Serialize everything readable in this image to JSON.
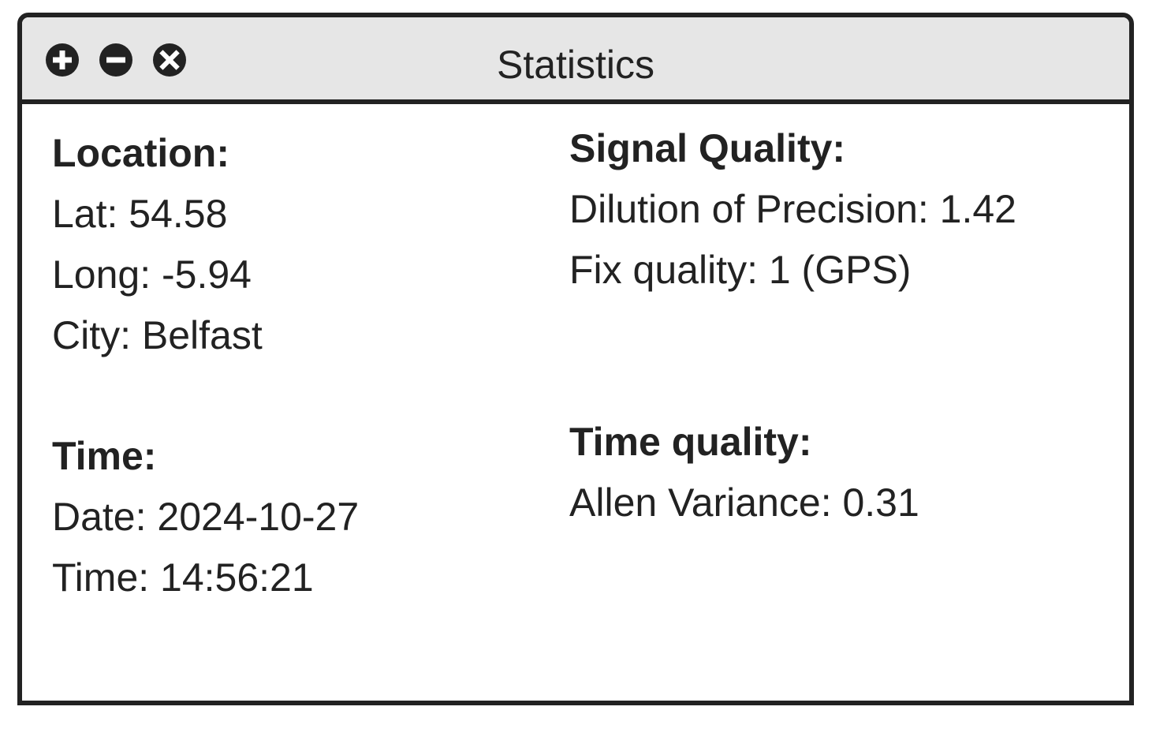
{
  "window": {
    "title": "Statistics",
    "controls": [
      "plus-icon",
      "minus-icon",
      "close-icon"
    ]
  },
  "location": {
    "heading": "Location:",
    "lat": "Lat: 54.58",
    "long": "Long: -5.94",
    "city": "City: Belfast"
  },
  "signal": {
    "heading": "Signal Quality:",
    "dop": "Dilution of Precision: 1.42",
    "fix": "Fix quality: 1 (GPS)"
  },
  "time": {
    "heading": "Time:",
    "date": "Date: 2024-10-27",
    "time": "Time: 14:56:21"
  },
  "time_quality": {
    "heading": "Time quality:",
    "allen": "Allen Variance: 0.31"
  },
  "colors": {
    "border": "#222222",
    "titlebar": "#e6e6e6",
    "background": "#ffffff"
  }
}
